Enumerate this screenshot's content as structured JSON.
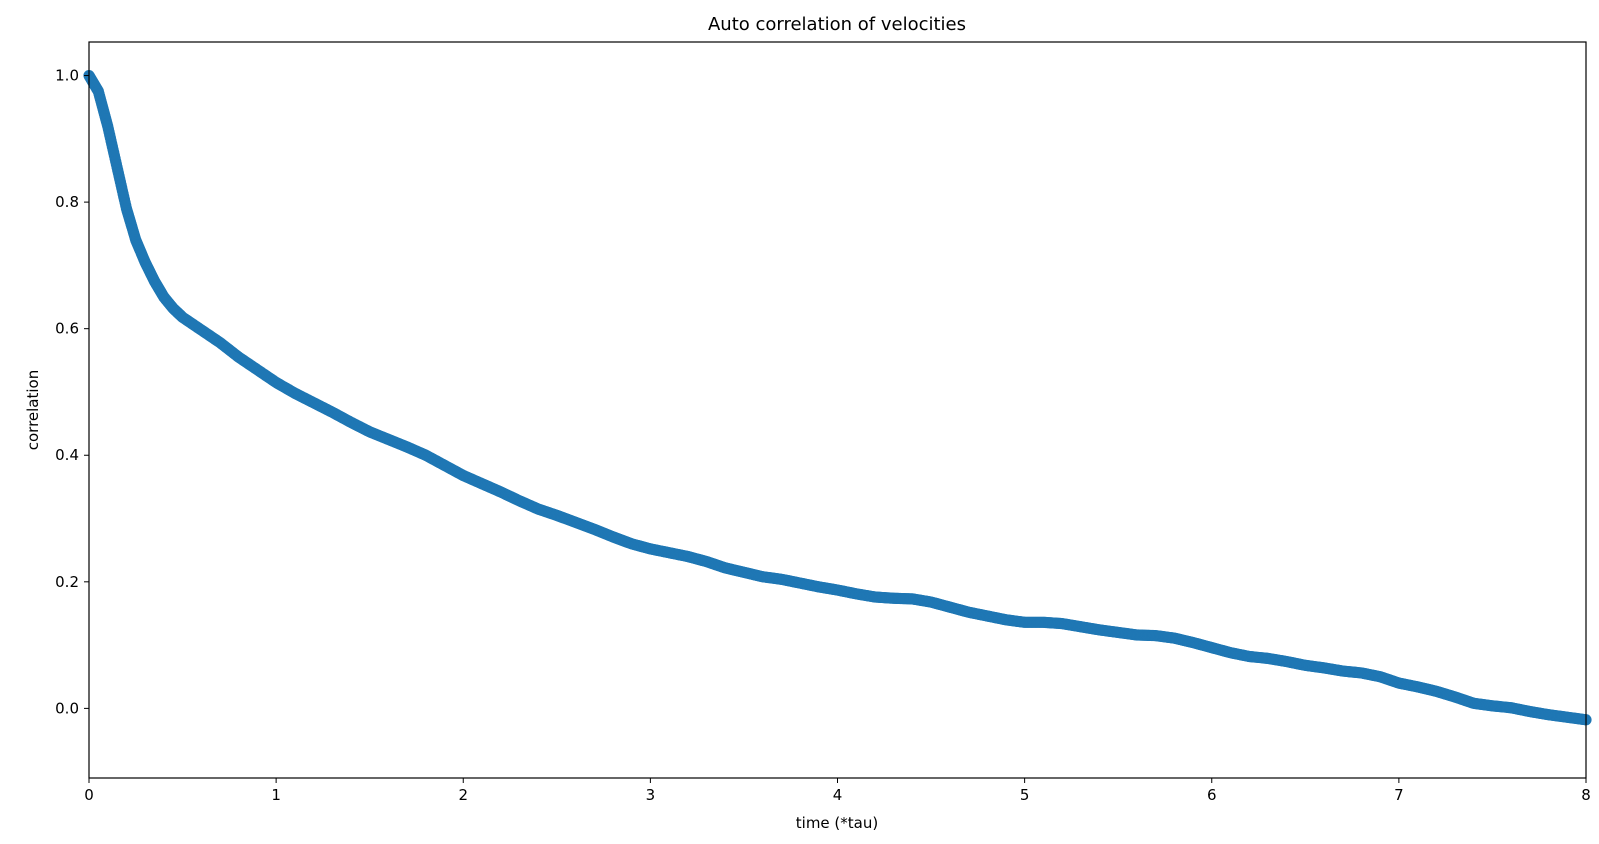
{
  "chart_data": {
    "type": "scatter",
    "title": "Auto correlation of velocities",
    "xlabel": "time (*tau)",
    "ylabel": "correlation",
    "xlim": [
      0,
      8
    ],
    "ylim": [
      -0.11,
      1.053
    ],
    "xticks": [
      "0",
      "1",
      "2",
      "3",
      "4",
      "5",
      "6",
      "7",
      "8"
    ],
    "yticks": [
      "0.0",
      "0.2",
      "0.4",
      "0.6",
      "0.8",
      "1.0"
    ],
    "grid": false,
    "legend": "none",
    "series": [
      {
        "color": "#1f77b4",
        "points": [
          [
            0.0,
            1.0
          ],
          [
            0.05,
            0.975
          ],
          [
            0.1,
            0.92
          ],
          [
            0.15,
            0.855
          ],
          [
            0.2,
            0.79
          ],
          [
            0.25,
            0.74
          ],
          [
            0.3,
            0.705
          ],
          [
            0.35,
            0.675
          ],
          [
            0.4,
            0.65
          ],
          [
            0.45,
            0.632
          ],
          [
            0.5,
            0.618
          ],
          [
            0.6,
            0.598
          ],
          [
            0.7,
            0.578
          ],
          [
            0.8,
            0.555
          ],
          [
            0.9,
            0.535
          ],
          [
            1.0,
            0.515
          ],
          [
            1.1,
            0.498
          ],
          [
            1.2,
            0.483
          ],
          [
            1.3,
            0.468
          ],
          [
            1.4,
            0.452
          ],
          [
            1.5,
            0.437
          ],
          [
            1.6,
            0.425
          ],
          [
            1.7,
            0.413
          ],
          [
            1.8,
            0.4
          ],
          [
            1.9,
            0.384
          ],
          [
            2.0,
            0.368
          ],
          [
            2.1,
            0.355
          ],
          [
            2.2,
            0.342
          ],
          [
            2.3,
            0.328
          ],
          [
            2.4,
            0.315
          ],
          [
            2.5,
            0.305
          ],
          [
            2.6,
            0.294
          ],
          [
            2.7,
            0.283
          ],
          [
            2.8,
            0.271
          ],
          [
            2.9,
            0.26
          ],
          [
            3.0,
            0.252
          ],
          [
            3.1,
            0.246
          ],
          [
            3.2,
            0.24
          ],
          [
            3.3,
            0.232
          ],
          [
            3.4,
            0.222
          ],
          [
            3.5,
            0.215
          ],
          [
            3.6,
            0.208
          ],
          [
            3.7,
            0.204
          ],
          [
            3.8,
            0.198
          ],
          [
            3.9,
            0.192
          ],
          [
            4.0,
            0.187
          ],
          [
            4.1,
            0.181
          ],
          [
            4.2,
            0.176
          ],
          [
            4.3,
            0.174
          ],
          [
            4.4,
            0.173
          ],
          [
            4.5,
            0.168
          ],
          [
            4.6,
            0.16
          ],
          [
            4.7,
            0.152
          ],
          [
            4.8,
            0.146
          ],
          [
            4.9,
            0.14
          ],
          [
            5.0,
            0.136
          ],
          [
            5.1,
            0.136
          ],
          [
            5.2,
            0.134
          ],
          [
            5.3,
            0.129
          ],
          [
            5.4,
            0.124
          ],
          [
            5.5,
            0.12
          ],
          [
            5.6,
            0.116
          ],
          [
            5.7,
            0.115
          ],
          [
            5.8,
            0.111
          ],
          [
            5.9,
            0.104
          ],
          [
            6.0,
            0.096
          ],
          [
            6.1,
            0.088
          ],
          [
            6.2,
            0.082
          ],
          [
            6.3,
            0.079
          ],
          [
            6.4,
            0.074
          ],
          [
            6.5,
            0.068
          ],
          [
            6.6,
            0.064
          ],
          [
            6.7,
            0.059
          ],
          [
            6.8,
            0.056
          ],
          [
            6.9,
            0.05
          ],
          [
            7.0,
            0.04
          ],
          [
            7.1,
            0.034
          ],
          [
            7.2,
            0.027
          ],
          [
            7.3,
            0.018
          ],
          [
            7.4,
            0.008
          ],
          [
            7.5,
            0.004
          ],
          [
            7.6,
            0.001
          ],
          [
            7.7,
            -0.005
          ],
          [
            7.8,
            -0.01
          ],
          [
            7.9,
            -0.014
          ],
          [
            8.0,
            -0.018
          ]
        ]
      }
    ]
  }
}
